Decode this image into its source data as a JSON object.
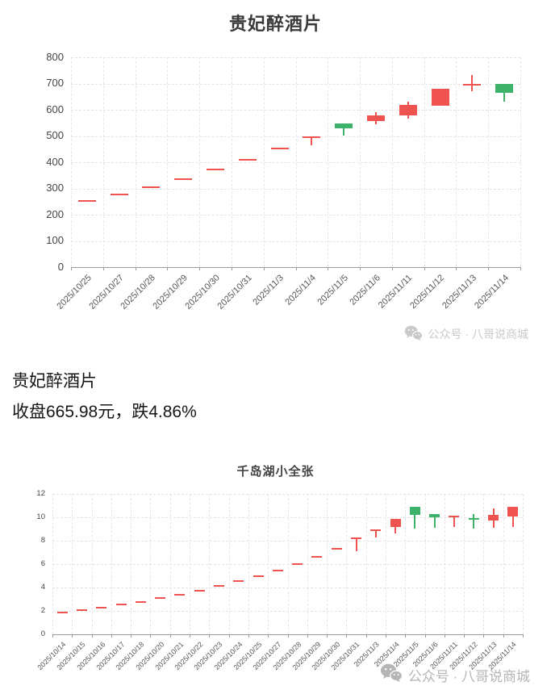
{
  "watermark": {
    "text": "公众号 · 八哥说商城"
  },
  "caption": {
    "line1": "贵妃醉酒片",
    "line2": "收盘665.98元，跌4.86%"
  },
  "colors": {
    "up": "#ef5350",
    "down": "#3cb26b",
    "grid": "#e4e4e4",
    "axis": "#9a9a9a",
    "label": "#555555",
    "title": "#3a3a3a",
    "watermark": "#c0c0c0"
  },
  "chart_data": [
    {
      "type": "candlestick",
      "title": "贵妃醉酒片",
      "xlabel": "",
      "ylabel": "",
      "ylim": [
        0,
        800
      ],
      "ytick_step": 100,
      "grid": true,
      "legend_position": "none",
      "categories": [
        "2025/10/25",
        "2025/10/27",
        "2025/10/28",
        "2025/10/29",
        "2025/10/30",
        "2025/10/31",
        "2025/11/3",
        "2025/11/4",
        "2025/11/5",
        "2025/11/6",
        "2025/11/11",
        "2025/11/12",
        "2025/11/13",
        "2025/11/14"
      ],
      "ohlc_order": [
        "open",
        "close",
        "low",
        "high"
      ],
      "series": [
        {
          "name": "贵妃醉酒片",
          "values": [
            [
              255,
              255,
              255,
              255
            ],
            [
              280,
              280,
              280,
              280
            ],
            [
              308,
              308,
              308,
              308
            ],
            [
              340,
              340,
              340,
              340
            ],
            [
              375,
              375,
              375,
              375
            ],
            [
              412,
              412,
              412,
              412
            ],
            [
              455,
              455,
              455,
              455
            ],
            [
              500,
              500,
              465,
              500
            ],
            [
              548,
              530,
              500,
              548
            ],
            [
              556,
              578,
              545,
              590
            ],
            [
              578,
              620,
              565,
              630
            ],
            [
              616,
              681,
              616,
              681
            ],
            [
              700,
              700,
              670,
              733
            ],
            [
              697,
              666,
              630,
              697
            ]
          ]
        }
      ]
    },
    {
      "type": "candlestick",
      "title": "千岛湖小全张",
      "xlabel": "",
      "ylabel": "",
      "ylim": [
        0,
        12
      ],
      "ytick_step": 2,
      "grid": true,
      "legend_position": "none",
      "categories": [
        "2025/10/14",
        "2025/10/15",
        "2025/10/16",
        "2025/10/17",
        "2025/10/18",
        "2025/10/20",
        "2025/10/21",
        "2025/10/22",
        "2025/10/23",
        "2025/10/24",
        "2025/10/25",
        "2025/10/27",
        "2025/10/28",
        "2025/10/29",
        "2025/10/30",
        "2025/10/31",
        "2025/11/3",
        "2025/11/4",
        "2025/11/5",
        "2025/11/6",
        "2025/11/11",
        "2025/11/12",
        "2025/11/13",
        "2025/11/14"
      ],
      "ohlc_order": [
        "open",
        "close",
        "low",
        "high"
      ],
      "series": [
        {
          "name": "千岛湖小全张",
          "values": [
            [
              1.95,
              1.95,
              1.95,
              1.95
            ],
            [
              2.15,
              2.15,
              2.15,
              2.15
            ],
            [
              2.35,
              2.35,
              2.35,
              2.35
            ],
            [
              2.6,
              2.6,
              2.6,
              2.6
            ],
            [
              2.85,
              2.85,
              2.85,
              2.85
            ],
            [
              3.15,
              3.15,
              3.15,
              3.15
            ],
            [
              3.45,
              3.45,
              3.45,
              3.45
            ],
            [
              3.8,
              3.8,
              3.8,
              3.8
            ],
            [
              4.2,
              4.2,
              4.2,
              4.2
            ],
            [
              4.6,
              4.6,
              4.6,
              4.6
            ],
            [
              5.05,
              5.05,
              5.05,
              5.05
            ],
            [
              5.55,
              5.55,
              5.55,
              5.55
            ],
            [
              6.05,
              6.05,
              6.05,
              6.05
            ],
            [
              6.7,
              6.7,
              6.7,
              6.7
            ],
            [
              7.35,
              7.35,
              7.35,
              7.35
            ],
            [
              8.25,
              8.25,
              7.1,
              8.25
            ],
            [
              9.0,
              9.0,
              8.3,
              9.0
            ],
            [
              9.15,
              9.85,
              8.65,
              9.85
            ],
            [
              10.9,
              10.2,
              9.05,
              10.9
            ],
            [
              10.25,
              10.0,
              9.1,
              10.25
            ],
            [
              10.0,
              10.15,
              9.15,
              10.15
            ],
            [
              9.9,
              9.85,
              9.05,
              10.3
            ],
            [
              9.7,
              10.2,
              9.1,
              10.75
            ],
            [
              10.05,
              10.9,
              9.2,
              10.9
            ]
          ]
        }
      ]
    }
  ]
}
